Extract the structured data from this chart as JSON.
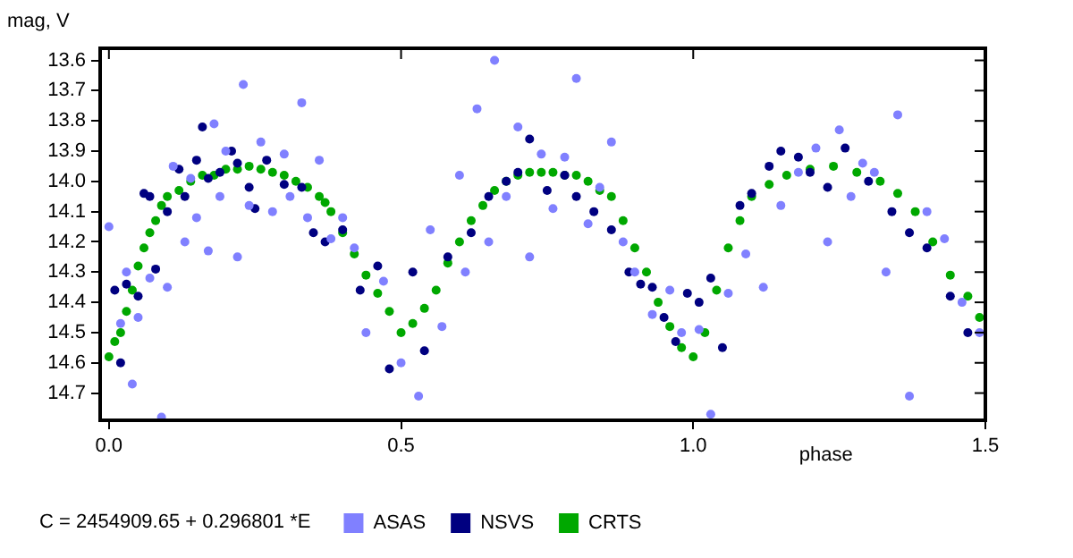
{
  "chart_data": {
    "type": "scatter",
    "xlabel": "phase",
    "ylabel": "mag, V",
    "annotations": [
      "C = 2454909.65 + 0.296801 *E"
    ],
    "xlim": [
      -0.015,
      1.5
    ],
    "ylim": [
      14.79,
      13.56
    ],
    "xticks": [
      {
        "value": 0,
        "label": "0.0"
      },
      0.5,
      {
        "value": 1,
        "label": "1.0"
      },
      1.5
    ],
    "yticks": [
      13.6,
      13.7,
      13.8,
      13.9,
      {
        "value": 14,
        "label": "14.0"
      },
      14.1,
      14.2,
      14.3,
      14.4,
      14.5,
      14.6,
      14.7
    ],
    "grid": false,
    "legend": "bottom",
    "marker": "circle",
    "series": [
      {
        "name": "ASAS",
        "color": "#8080ff",
        "x": [
          0.0,
          0.02,
          0.03,
          0.04,
          0.05,
          0.07,
          0.09,
          0.1,
          0.11,
          0.13,
          0.14,
          0.15,
          0.17,
          0.18,
          0.19,
          0.2,
          0.22,
          0.23,
          0.24,
          0.26,
          0.28,
          0.3,
          0.31,
          0.33,
          0.34,
          0.36,
          0.38,
          0.4,
          0.42,
          0.44,
          0.47,
          0.5,
          0.53,
          0.55,
          0.57,
          0.6,
          0.61,
          0.63,
          0.65,
          0.66,
          0.68,
          0.7,
          0.72,
          0.74,
          0.76,
          0.78,
          0.8,
          0.82,
          0.84,
          0.86,
          0.88,
          0.9,
          0.93,
          0.96,
          0.98,
          1.01,
          1.03,
          1.06,
          1.09,
          1.12,
          1.15,
          1.18,
          1.21,
          1.23,
          1.25,
          1.27,
          1.29,
          1.31,
          1.33,
          1.35,
          1.37,
          1.4,
          1.43,
          1.46,
          1.49
        ],
        "values": [
          14.15,
          14.47,
          14.3,
          14.67,
          14.45,
          14.32,
          14.78,
          14.35,
          13.95,
          14.2,
          13.99,
          14.12,
          14.23,
          13.81,
          14.05,
          13.9,
          14.25,
          13.68,
          14.08,
          13.87,
          14.1,
          13.91,
          14.05,
          13.74,
          14.12,
          13.93,
          14.19,
          14.12,
          14.22,
          14.5,
          14.33,
          14.6,
          14.71,
          14.16,
          14.48,
          13.98,
          14.3,
          13.76,
          14.2,
          13.6,
          14.05,
          13.82,
          14.25,
          13.91,
          14.09,
          13.92,
          13.66,
          14.14,
          14.02,
          13.87,
          14.2,
          14.3,
          14.44,
          14.36,
          14.5,
          14.49,
          14.77,
          14.37,
          14.24,
          14.35,
          14.08,
          13.97,
          13.89,
          14.2,
          13.83,
          14.05,
          13.94,
          13.97,
          14.3,
          13.78,
          14.71,
          14.1,
          14.19,
          14.4,
          14.5
        ]
      },
      {
        "name": "NSVS",
        "color": "#000080",
        "x": [
          0.01,
          0.02,
          0.03,
          0.05,
          0.06,
          0.07,
          0.08,
          0.1,
          0.12,
          0.13,
          0.15,
          0.16,
          0.17,
          0.19,
          0.21,
          0.22,
          0.24,
          0.25,
          0.27,
          0.3,
          0.33,
          0.35,
          0.37,
          0.4,
          0.43,
          0.46,
          0.48,
          0.52,
          0.54,
          0.58,
          0.62,
          0.65,
          0.68,
          0.7,
          0.72,
          0.75,
          0.78,
          0.8,
          0.83,
          0.86,
          0.89,
          0.91,
          0.93,
          0.95,
          0.97,
          0.99,
          1.01,
          1.03,
          1.05,
          1.08,
          1.1,
          1.13,
          1.15,
          1.18,
          1.2,
          1.23,
          1.26,
          1.3,
          1.34,
          1.37,
          1.4,
          1.44,
          1.47
        ],
        "values": [
          14.36,
          14.6,
          14.34,
          14.38,
          14.04,
          14.05,
          14.29,
          14.1,
          13.96,
          14.05,
          13.93,
          13.82,
          13.99,
          13.97,
          13.9,
          13.94,
          14.02,
          14.09,
          13.93,
          14.01,
          14.02,
          14.17,
          14.2,
          14.16,
          14.36,
          14.28,
          14.62,
          14.3,
          14.56,
          14.25,
          14.17,
          14.05,
          14.0,
          13.97,
          13.86,
          14.03,
          13.98,
          14.05,
          14.1,
          14.16,
          14.3,
          14.34,
          14.35,
          14.45,
          14.53,
          14.37,
          14.4,
          14.32,
          14.55,
          14.08,
          14.04,
          13.95,
          13.9,
          13.92,
          13.97,
          14.02,
          13.89,
          14.0,
          14.1,
          14.17,
          14.22,
          14.38,
          14.5
        ]
      },
      {
        "name": "CRTS",
        "color": "#00a800",
        "x": [
          0.0,
          0.01,
          0.02,
          0.03,
          0.04,
          0.05,
          0.06,
          0.07,
          0.08,
          0.09,
          0.1,
          0.12,
          0.14,
          0.16,
          0.18,
          0.2,
          0.22,
          0.24,
          0.26,
          0.28,
          0.3,
          0.32,
          0.34,
          0.36,
          0.37,
          0.38,
          0.4,
          0.42,
          0.44,
          0.46,
          0.48,
          0.5,
          0.52,
          0.54,
          0.56,
          0.58,
          0.6,
          0.62,
          0.64,
          0.66,
          0.68,
          0.7,
          0.72,
          0.74,
          0.76,
          0.78,
          0.8,
          0.82,
          0.84,
          0.86,
          0.88,
          0.9,
          0.92,
          0.94,
          0.96,
          0.98,
          1.0,
          1.02,
          1.04,
          1.06,
          1.08,
          1.1,
          1.13,
          1.16,
          1.2,
          1.24,
          1.28,
          1.32,
          1.35,
          1.38,
          1.41,
          1.44,
          1.47,
          1.49
        ],
        "values": [
          14.58,
          14.53,
          14.5,
          14.43,
          14.36,
          14.28,
          14.22,
          14.17,
          14.13,
          14.08,
          14.05,
          14.03,
          14.0,
          13.98,
          13.98,
          13.96,
          13.96,
          13.95,
          13.96,
          13.97,
          13.98,
          14.0,
          14.02,
          14.05,
          14.07,
          14.1,
          14.17,
          14.24,
          14.31,
          14.37,
          14.43,
          14.5,
          14.47,
          14.42,
          14.36,
          14.27,
          14.2,
          14.13,
          14.08,
          14.03,
          14.0,
          13.98,
          13.97,
          13.97,
          13.97,
          13.98,
          13.98,
          14.0,
          14.03,
          14.05,
          14.13,
          14.22,
          14.3,
          14.4,
          14.48,
          14.55,
          14.58,
          14.5,
          14.36,
          14.22,
          14.13,
          14.05,
          14.01,
          13.98,
          13.96,
          13.95,
          13.97,
          14.0,
          14.04,
          14.1,
          14.2,
          14.31,
          14.38,
          14.45
        ]
      }
    ]
  }
}
